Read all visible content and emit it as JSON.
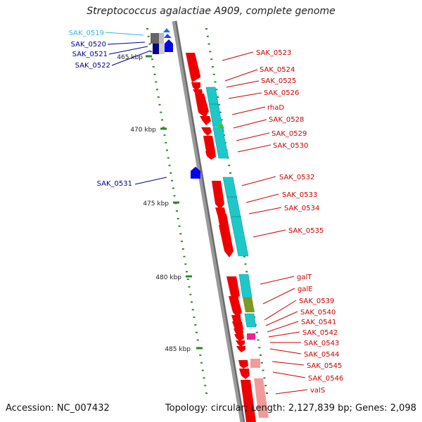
{
  "title": "Streptococcus agalactiae A909, complete genome",
  "footer": {
    "accession": "Accession: NC_007432",
    "summary": "Topology: circular; Length: 2,127,839 bp; Genes: 2,098"
  },
  "colors": {
    "label_red": "#cc0000",
    "label_blue": "#00008b",
    "label_cyan": "#33b5e5",
    "gene_red": "#ee0000",
    "gene_pink": "#f29a9a",
    "gene_blue": "#0000ee",
    "cyan": "#1fc8c8",
    "tick": "#2a8a2a"
  },
  "kbp_ticks": [
    {
      "label": "465 kbp"
    },
    {
      "label": "470 kbp"
    },
    {
      "label": "475 kbp"
    },
    {
      "label": "480 kbp"
    },
    {
      "label": "485 kbp"
    }
  ],
  "left_labels": [
    {
      "label": "SAK_0519",
      "color": "cyan"
    },
    {
      "label": "SAK_0520",
      "color": "blue"
    },
    {
      "label": "SAK_0521",
      "color": "blue"
    },
    {
      "label": "SAK_0522",
      "color": "blue"
    },
    {
      "label": "SAK_0531",
      "color": "blue"
    }
  ],
  "right_labels": [
    "SAK_0523",
    "SAK_0524",
    "SAK_0525",
    "SAK_0526",
    "rhaD",
    "SAK_0528",
    "SAK_0529",
    "SAK_0530",
    "SAK_0532",
    "SAK_0533",
    "SAK_0534",
    "SAK_0535",
    "galT",
    "galE",
    "SAK_0539",
    "SAK_0540",
    "SAK_0541",
    "SAK_0542",
    "SAK_0543",
    "SAK_0544",
    "SAK_0545",
    "SAK_0546",
    "valS"
  ]
}
